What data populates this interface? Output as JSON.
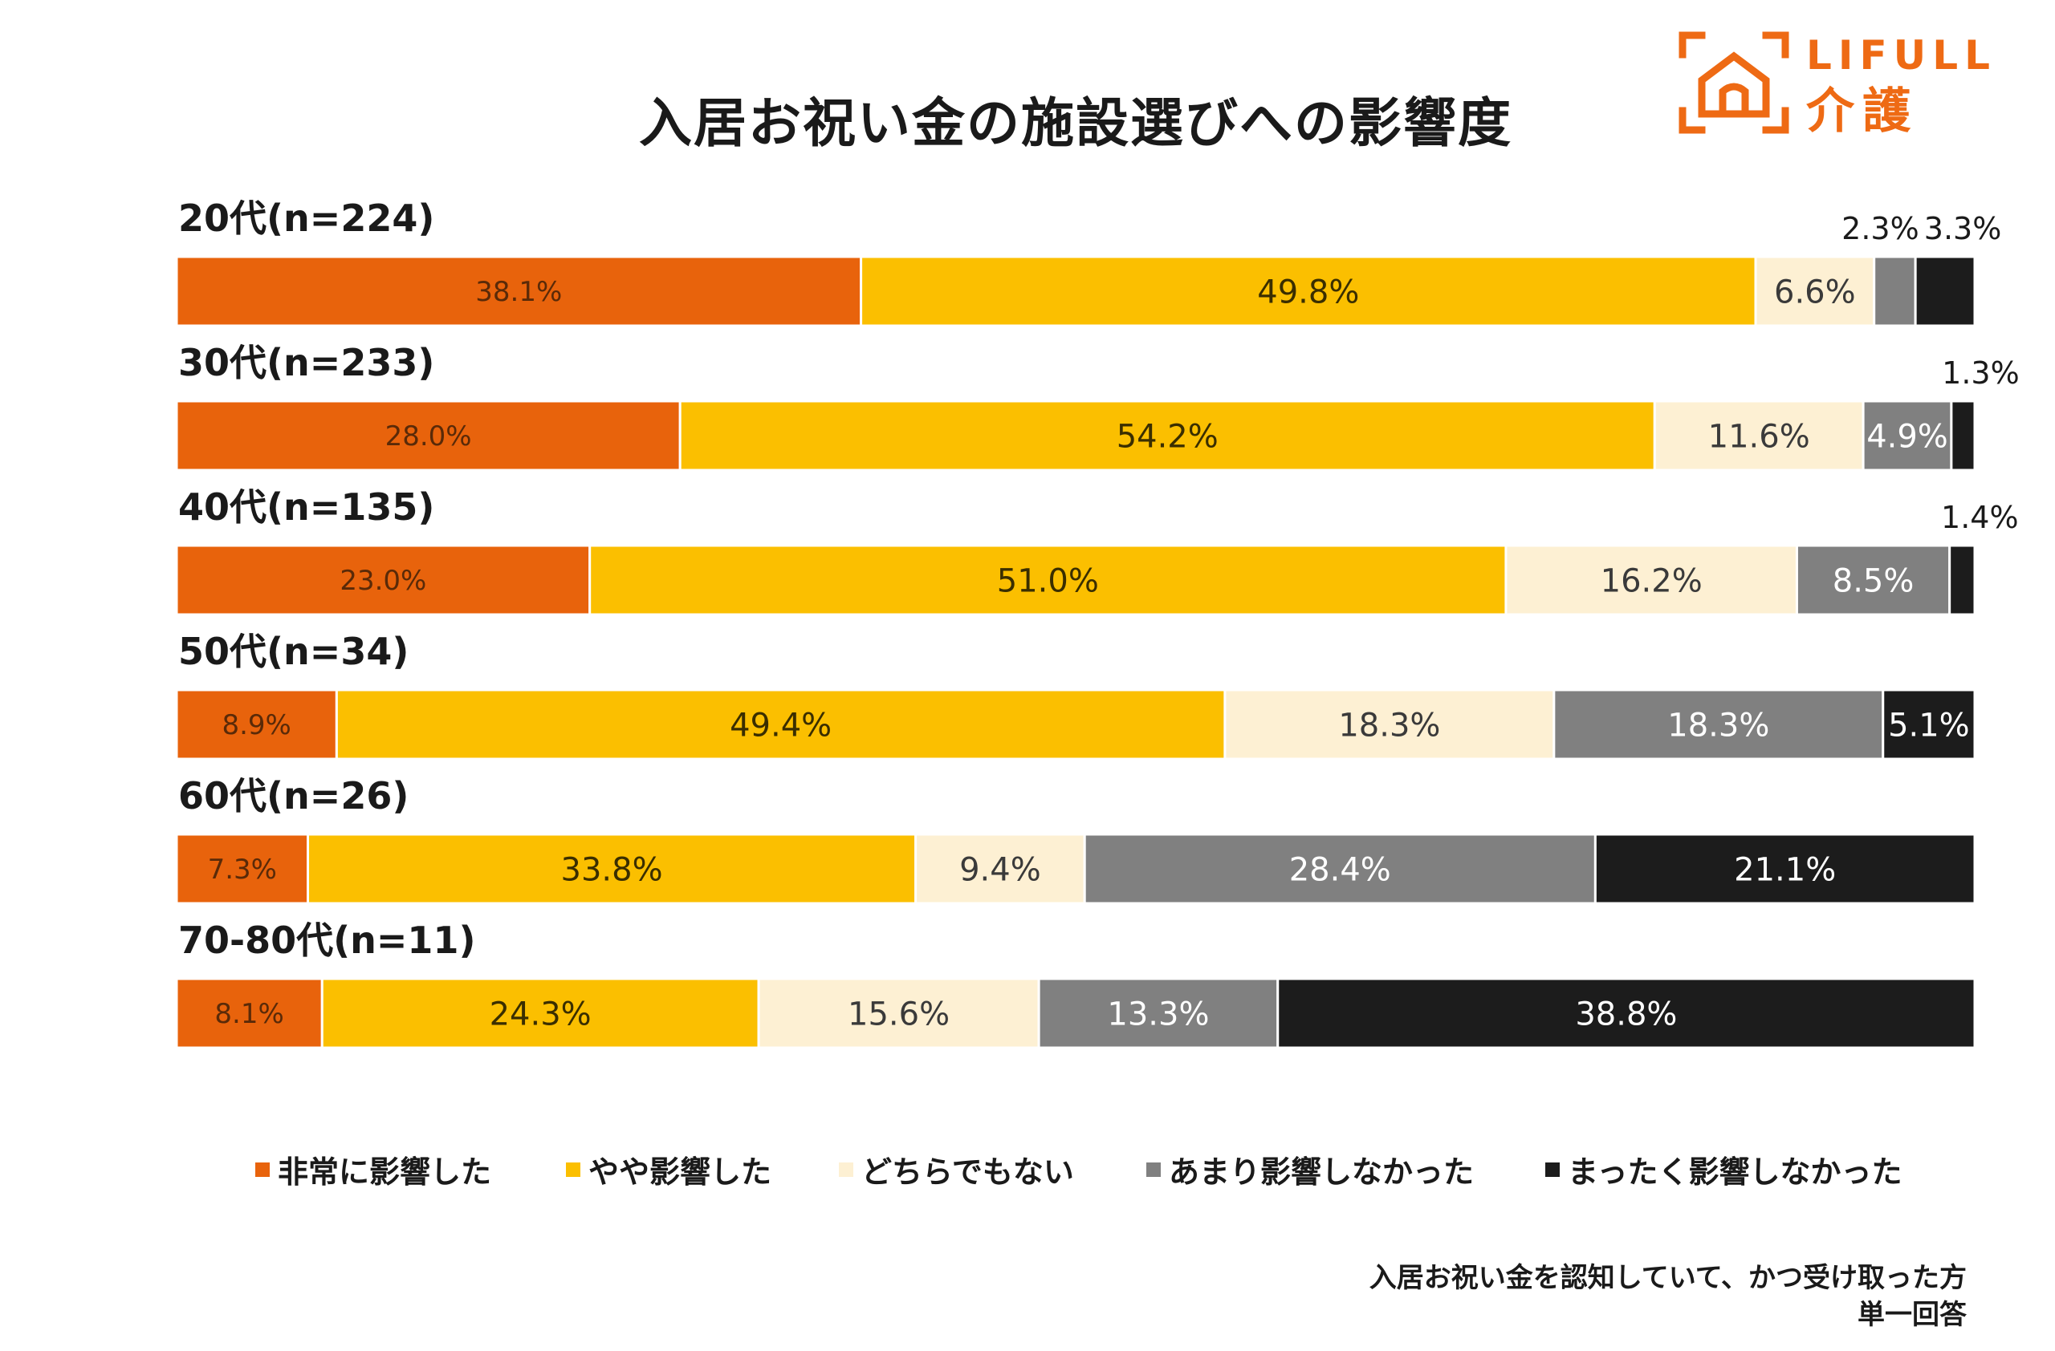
{
  "logo": {
    "word": "LIFULL",
    "sub": "介護"
  },
  "colors": {
    "very": "#e8630c",
    "somewhat": "#fbbf00",
    "neutral": "#fdf0d3",
    "little": "#808080",
    "none": "#1c1c1c"
  },
  "legend_items": [
    "非常に影響した",
    "やや影響した",
    "どちらでもない",
    "あまり影響しなかった",
    "まったく影響しなかった"
  ],
  "footnote": {
    "line1": "入居お祝い金を認知していて、かつ受け取った方",
    "line2": "単一回答"
  },
  "chart_data": {
    "type": "bar",
    "orientation": "horizontal",
    "stacked": true,
    "percent": true,
    "title": "入居お祝い金の施設選びへの影響度",
    "categories": [
      "20代(n=224)",
      "30代(n=233)",
      "40代(n=135)",
      "50代(n=34)",
      "60代(n=26)",
      "70-80代(n=11)"
    ],
    "series": [
      {
        "name": "非常に影響した",
        "values": [
          38.1,
          28.0,
          23.0,
          8.9,
          7.3,
          8.1
        ]
      },
      {
        "name": "やや影響した",
        "values": [
          49.8,
          54.2,
          51.0,
          49.4,
          33.8,
          24.3
        ]
      },
      {
        "name": "どちらでもない",
        "values": [
          6.6,
          11.6,
          16.2,
          18.3,
          9.4,
          15.6
        ]
      },
      {
        "name": "あまり影響しなかった",
        "values": [
          2.3,
          4.9,
          8.5,
          18.3,
          28.4,
          13.3
        ]
      },
      {
        "name": "まったく影響しなかった",
        "values": [
          3.3,
          1.3,
          1.4,
          5.1,
          21.1,
          38.8
        ]
      }
    ],
    "legend": "bottom",
    "grid": false
  }
}
